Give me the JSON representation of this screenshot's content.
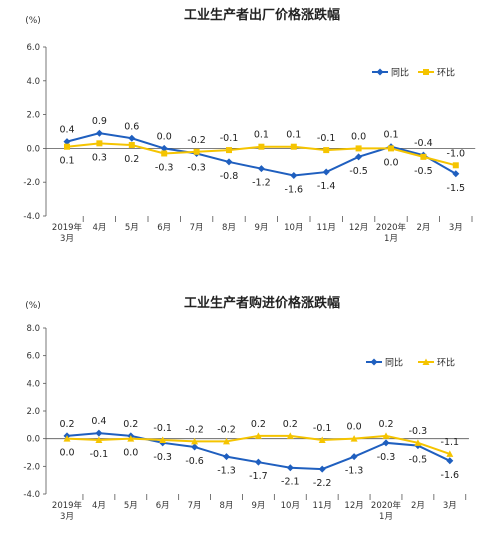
{
  "chart_data": [
    {
      "type": "line",
      "title": "工业生产者出厂价格涨跌幅",
      "ylabel": "(%)",
      "ylim": [
        -4.0,
        6.0
      ],
      "yticks": [
        "6.0",
        "4.0",
        "2.0",
        "0.0",
        "-2.0",
        "-4.0"
      ],
      "grid": false,
      "legend": "top-right",
      "categories": [
        "2019年\n3月",
        "4月",
        "5月",
        "6月",
        "7月",
        "8月",
        "9月",
        "10月",
        "11月",
        "12月",
        "2020年\n1月",
        "2月",
        "3月"
      ],
      "series": [
        {
          "name": "同比",
          "color": "#1f5fbf",
          "marker": "diamond",
          "values": [
            0.4,
            0.9,
            0.6,
            0.0,
            -0.3,
            -0.8,
            -1.2,
            -1.6,
            -1.4,
            -0.5,
            0.1,
            -0.4,
            -1.5
          ],
          "labels": [
            "0.4",
            "0.9",
            "0.6",
            "0.0",
            "-0.3",
            "-0.8",
            "-1.2",
            "-1.6",
            "-1.4",
            "-0.5",
            "0.1",
            "-0.4",
            "-1.5"
          ],
          "label_pos": [
            "above",
            "above",
            "above",
            "above",
            "below",
            "below",
            "below",
            "below",
            "below",
            "below",
            "above",
            "above",
            "below"
          ]
        },
        {
          "name": "环比",
          "color": "#f5c400",
          "marker": "square",
          "values": [
            0.1,
            0.3,
            0.2,
            -0.3,
            -0.2,
            -0.1,
            0.1,
            0.1,
            -0.1,
            0.0,
            0.0,
            -0.5,
            -1.0
          ],
          "labels": [
            "0.1",
            "0.3",
            "0.2",
            "-0.3",
            "-0.2",
            "-0.1",
            "0.1",
            "0.1",
            "-0.1",
            "0.0",
            "0.0",
            "-0.5",
            "-1.0"
          ],
          "label_pos": [
            "below",
            "below",
            "below",
            "below",
            "above",
            "above",
            "above",
            "above",
            "above",
            "above",
            "below",
            "below",
            "above"
          ]
        }
      ]
    },
    {
      "type": "line",
      "title": "工业生产者购进价格涨跌幅",
      "ylabel": "(%)",
      "ylim": [
        -4.0,
        8.0
      ],
      "yticks": [
        "8.0",
        "6.0",
        "4.0",
        "2.0",
        "0.0",
        "-2.0",
        "-4.0"
      ],
      "grid": false,
      "legend": "top-right",
      "categories": [
        "2019年\n3月",
        "4月",
        "5月",
        "6月",
        "7月",
        "8月",
        "9月",
        "10月",
        "11月",
        "12月",
        "2020年\n1月",
        "2月",
        "3月"
      ],
      "series": [
        {
          "name": "同比",
          "color": "#1f5fbf",
          "marker": "diamond",
          "values": [
            0.2,
            0.4,
            0.2,
            -0.3,
            -0.6,
            -1.3,
            -1.7,
            -2.1,
            -2.2,
            -1.3,
            -0.3,
            -0.5,
            -1.6
          ],
          "labels": [
            "0.2",
            "0.4",
            "0.2",
            "-0.3",
            "-0.6",
            "-1.3",
            "-1.7",
            "-2.1",
            "-2.2",
            "-1.3",
            "-0.3",
            "-0.5",
            "-1.6"
          ],
          "label_pos": [
            "above",
            "above",
            "above",
            "below",
            "below",
            "below",
            "below",
            "below",
            "below",
            "below",
            "below",
            "below",
            "below"
          ]
        },
        {
          "name": "环比",
          "color": "#f5c400",
          "marker": "triangle",
          "values": [
            0.0,
            -0.1,
            0.0,
            -0.1,
            -0.2,
            -0.2,
            0.2,
            0.2,
            -0.1,
            0.0,
            0.2,
            -0.3,
            -1.1
          ],
          "labels": [
            "0.0",
            "-0.1",
            "0.0",
            "-0.1",
            "-0.2",
            "-0.2",
            "0.2",
            "0.2",
            "-0.1",
            "0.0",
            "0.2",
            "-0.3",
            "-1.1"
          ],
          "label_pos": [
            "below",
            "below",
            "below",
            "above",
            "above",
            "above",
            "above",
            "above",
            "above",
            "above",
            "above",
            "above",
            "above"
          ]
        }
      ]
    }
  ]
}
